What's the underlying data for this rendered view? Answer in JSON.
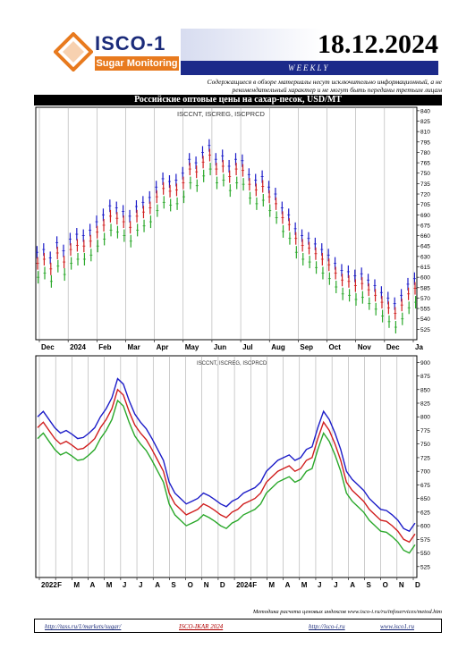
{
  "header": {
    "logo_title": "ISCO-1",
    "logo_subtitle": "Sugar Monitoring",
    "date": "18.12.2024",
    "period": "WEEKLY",
    "disclaimer": "Содержащиеся в обзоре материалы несут исключительно информационный, а не рекомендательный характер и не могут быть переданы третьим лицам",
    "colors": {
      "accent_orange": "#e87a1e",
      "brand_navy": "#1c2a8a"
    }
  },
  "section_title": "Российские оптовые цены на сахар-песок, USD/MT",
  "footer": {
    "note": "Методика расчета ценовых индексов www.isco-i.ru/ru/infoservices/metod.htm",
    "link1": "http://tass.ru/1/markets/sugar/",
    "link2": "ISCO-IKAR 2024",
    "link3": "http://isco-i.ru",
    "link4": "www.isco1.ru"
  },
  "chart_data": [
    {
      "type": "line",
      "legend": "ISCCNT, ISCREG, ISCPRCD",
      "x_tick_labels": [
        "Dec",
        "2024",
        "Feb",
        "Mar",
        "Apr",
        "May",
        "Jun",
        "Jul",
        "Aug",
        "Sep",
        "Oct",
        "Nov",
        "Dec",
        "Ja"
      ],
      "y_tick_labels": [
        "525",
        "540",
        "555",
        "570",
        "585",
        "600",
        "615",
        "630",
        "645",
        "660",
        "675",
        "690",
        "705",
        "720",
        "735",
        "750",
        "765",
        "780",
        "795",
        "810",
        "825",
        "840"
      ],
      "ylim": [
        510,
        845
      ],
      "grid": true,
      "y_axis_side": "right",
      "series": [
        {
          "color": "#1c1cc8",
          "values": [
            636,
            640,
            628,
            650,
            638,
            655,
            662,
            660,
            668,
            680,
            690,
            703,
            700,
            695,
            688,
            702,
            708,
            715,
            730,
            742,
            738,
            740,
            750,
            770,
            765,
            780,
            790,
            770,
            775,
            760,
            770,
            768,
            748,
            740,
            745,
            730,
            720,
            700,
            690,
            670,
            660,
            656,
            648,
            640,
            632,
            620,
            610,
            608,
            602,
            605,
            596,
            588,
            578,
            570,
            562,
            574,
            590,
            598
          ]
        },
        {
          "color": "#d01e1e",
          "values": [
            620,
            626,
            612,
            635,
            622,
            640,
            646,
            645,
            652,
            665,
            675,
            688,
            685,
            680,
            672,
            688,
            694,
            700,
            716,
            728,
            724,
            726,
            736,
            756,
            752,
            766,
            776,
            756,
            760,
            745,
            756,
            754,
            734,
            726,
            731,
            716,
            706,
            686,
            676,
            656,
            646,
            642,
            634,
            626,
            618,
            606,
            596,
            594,
            588,
            591,
            582,
            574,
            564,
            556,
            548,
            560,
            576,
            584
          ]
        },
        {
          "color": "#2aa82a",
          "values": [
            600,
            606,
            594,
            616,
            604,
            620,
            626,
            626,
            632,
            645,
            655,
            668,
            665,
            660,
            652,
            668,
            674,
            680,
            696,
            708,
            704,
            706,
            716,
            736,
            732,
            746,
            756,
            736,
            740,
            725,
            736,
            734,
            714,
            706,
            711,
            696,
            686,
            666,
            656,
            636,
            626,
            622,
            614,
            606,
            598,
            586,
            576,
            574,
            568,
            571,
            562,
            554,
            544,
            536,
            528,
            540,
            556,
            564
          ]
        }
      ]
    },
    {
      "type": "line",
      "legend": "ISCCNT, ISCREG, ISCPRCD",
      "x_tick_labels": [
        "2022",
        "F",
        "M",
        "A",
        "M",
        "J",
        "J",
        "A",
        "S",
        "O",
        "N",
        "D",
        "2024",
        "F",
        "M",
        "A",
        "M",
        "J",
        "J",
        "A",
        "S",
        "O",
        "N",
        "D"
      ],
      "y_tick_labels": [
        "525",
        "550",
        "575",
        "600",
        "625",
        "650",
        "675",
        "700",
        "725",
        "750",
        "775",
        "800",
        "825",
        "850",
        "875",
        "900"
      ],
      "ylim": [
        505,
        912
      ],
      "grid": true,
      "y_axis_side": "right",
      "series": [
        {
          "color": "#1c1cc8",
          "values": [
            800,
            810,
            795,
            780,
            770,
            775,
            768,
            760,
            762,
            770,
            780,
            800,
            815,
            835,
            870,
            860,
            830,
            805,
            790,
            778,
            760,
            740,
            720,
            680,
            660,
            650,
            640,
            645,
            650,
            660,
            655,
            648,
            640,
            635,
            645,
            650,
            660,
            665,
            670,
            680,
            700,
            710,
            720,
            725,
            730,
            720,
            725,
            740,
            745,
            780,
            810,
            795,
            770,
            740,
            700,
            685,
            675,
            665,
            650,
            640,
            630,
            628,
            620,
            610,
            595,
            590,
            605
          ]
        },
        {
          "color": "#d01e1e",
          "values": [
            780,
            790,
            775,
            760,
            750,
            755,
            748,
            740,
            742,
            750,
            760,
            780,
            795,
            815,
            850,
            840,
            810,
            785,
            770,
            758,
            740,
            720,
            700,
            660,
            640,
            630,
            620,
            625,
            630,
            640,
            635,
            628,
            620,
            615,
            625,
            630,
            640,
            645,
            650,
            660,
            680,
            690,
            700,
            705,
            710,
            700,
            705,
            720,
            725,
            760,
            790,
            775,
            750,
            720,
            680,
            665,
            655,
            645,
            630,
            620,
            610,
            608,
            600,
            590,
            575,
            570,
            585
          ]
        },
        {
          "color": "#2aa82a",
          "values": [
            760,
            770,
            755,
            740,
            730,
            735,
            728,
            720,
            722,
            730,
            740,
            760,
            775,
            795,
            830,
            820,
            790,
            765,
            750,
            738,
            720,
            700,
            680,
            640,
            620,
            610,
            600,
            605,
            610,
            620,
            615,
            608,
            600,
            595,
            605,
            610,
            620,
            625,
            630,
            640,
            660,
            670,
            680,
            685,
            690,
            680,
            685,
            700,
            705,
            740,
            770,
            755,
            730,
            700,
            660,
            645,
            635,
            625,
            610,
            600,
            590,
            588,
            580,
            570,
            555,
            550,
            565
          ]
        }
      ]
    }
  ]
}
